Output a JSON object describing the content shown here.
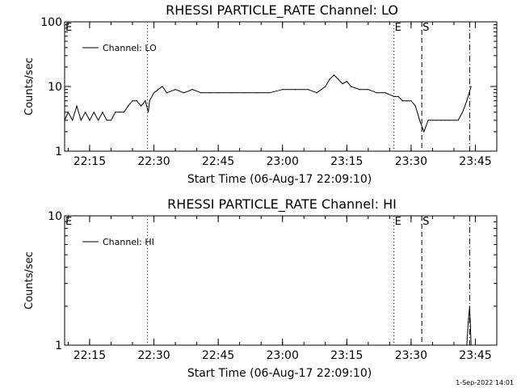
{
  "chart_data": [
    {
      "type": "line",
      "title": "RHESSI PARTICLE_RATE Channel: LO",
      "xlabel": "Start Time (06-Aug-17 22:09:10)",
      "ylabel": "Counts/sec",
      "yscale": "log",
      "ylim": [
        1,
        100
      ],
      "yticks": [
        "1",
        "10",
        "100"
      ],
      "xrange_minutes": [
        "22:09:10",
        "23:50:00"
      ],
      "xticks": [
        "22:15",
        "22:30",
        "22:45",
        "23:00",
        "23:15",
        "23:30",
        "23:45"
      ],
      "legend": "Channel: LO",
      "legend_position": "top-left",
      "grid": false,
      "markers": [
        {
          "label": "E",
          "time": "22:09:30",
          "style": "none"
        },
        {
          "label": "",
          "time": "22:28:30",
          "style": "dotted"
        },
        {
          "label": "E",
          "time": "23:26:00",
          "style": "dotted"
        },
        {
          "label": "S",
          "time": "23:32:30",
          "style": "dashed"
        },
        {
          "label": "",
          "time": "23:43:40",
          "style": "dashdot"
        }
      ],
      "series": [
        {
          "name": "Channel: LO",
          "x": [
            "22:09:10",
            "22:10:00",
            "22:11:00",
            "22:12:00",
            "22:13:00",
            "22:14:00",
            "22:15:00",
            "22:16:00",
            "22:17:00",
            "22:18:00",
            "22:19:00",
            "22:20:00",
            "22:21:00",
            "22:22:00",
            "22:23:00",
            "22:24:00",
            "22:25:00",
            "22:26:00",
            "22:27:00",
            "22:28:00",
            "22:28:40",
            "22:29:00",
            "22:30:00",
            "22:31:00",
            "22:32:00",
            "22:33:00",
            "22:35:00",
            "22:37:00",
            "22:39:00",
            "22:41:00",
            "22:43:00",
            "22:45:00",
            "22:48:00",
            "22:51:00",
            "22:54:00",
            "22:57:00",
            "23:00:00",
            "23:03:00",
            "23:06:00",
            "23:08:00",
            "23:10:00",
            "23:11:00",
            "23:12:00",
            "23:13:00",
            "23:14:00",
            "23:15:00",
            "23:16:00",
            "23:18:00",
            "23:20:00",
            "23:22:00",
            "23:24:00",
            "23:26:00",
            "23:27:00",
            "23:28:00",
            "23:29:00",
            "23:30:00",
            "23:31:00",
            "23:32:00",
            "23:33:00",
            "23:34:00",
            "23:35:00",
            "23:36:00",
            "23:37:00",
            "23:38:00",
            "23:39:00",
            "23:40:00",
            "23:41:00",
            "23:42:00",
            "23:43:00",
            "23:44:00"
          ],
          "y": [
            3,
            4,
            3,
            5,
            3,
            4,
            3,
            4,
            3,
            4,
            3,
            3,
            4,
            4,
            4,
            5,
            6,
            6,
            5,
            6,
            4,
            6,
            8,
            9,
            10,
            8,
            9,
            8,
            9,
            8,
            8,
            8,
            8,
            8,
            8,
            8,
            9,
            9,
            9,
            8,
            10,
            13,
            15,
            13,
            11,
            12,
            10,
            9,
            9,
            8,
            8,
            7,
            7,
            6,
            6,
            6,
            5,
            3,
            2,
            3,
            3,
            3,
            3,
            3,
            3,
            3,
            3,
            4,
            6,
            10
          ]
        }
      ]
    },
    {
      "type": "line",
      "title": "RHESSI PARTICLE_RATE Channel: HI",
      "xlabel": "Start Time (06-Aug-17 22:09:10)",
      "ylabel": "Counts/sec",
      "yscale": "log",
      "ylim": [
        1,
        10
      ],
      "yticks": [
        "1",
        "10"
      ],
      "xrange_minutes": [
        "22:09:10",
        "23:50:00"
      ],
      "xticks": [
        "22:15",
        "22:30",
        "22:45",
        "23:00",
        "23:15",
        "23:30",
        "23:45"
      ],
      "legend": "Channel: HI",
      "legend_position": "top-left",
      "grid": false,
      "markers": [
        {
          "label": "E",
          "time": "22:09:30",
          "style": "none"
        },
        {
          "label": "",
          "time": "22:28:30",
          "style": "dotted"
        },
        {
          "label": "E",
          "time": "23:26:00",
          "style": "dotted"
        },
        {
          "label": "S",
          "time": "23:32:30",
          "style": "dashed"
        },
        {
          "label": "",
          "time": "23:43:40",
          "style": "dashdot"
        }
      ],
      "series": [
        {
          "name": "Channel: HI",
          "x": [
            "23:43:00",
            "23:43:20",
            "23:43:40",
            "23:44:00"
          ],
          "y": [
            1,
            1.5,
            2,
            1
          ]
        }
      ]
    }
  ],
  "stamp": "1-Sep-2022 14:01"
}
